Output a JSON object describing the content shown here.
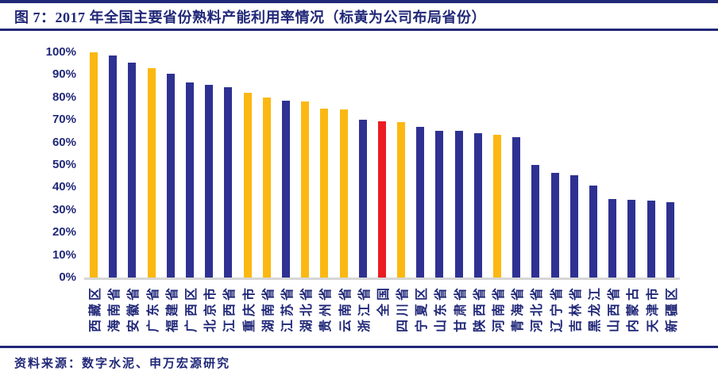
{
  "header": {
    "title": "图 7：2017 年全国主要省份熟料产能利用率情况（标黄为公司布局省份）"
  },
  "footer": {
    "source": "资料来源：数字水泥、申万宏源研究"
  },
  "palette": {
    "yellow": "#FBB812",
    "blue": "#2E3192",
    "red": "#EC1C23",
    "navy_text": "#212878",
    "axis_line": "#D6D6D6"
  },
  "chart_data": {
    "type": "bar",
    "title": "2017年全国主要省份熟料产能利用率情况",
    "note": "标黄为公司布局省份",
    "xlabel": "",
    "ylabel": "",
    "ylim": [
      0,
      100
    ],
    "grid": false,
    "legend_position": "none",
    "ytick_labels": [
      "100%",
      "90%",
      "80%",
      "70%",
      "60%",
      "50%",
      "40%",
      "30%",
      "20%",
      "10%",
      "0%"
    ],
    "categories": [
      "西藏区",
      "海南省",
      "安徽省",
      "广东省",
      "福建省",
      "广西区",
      "北京市",
      "江西省",
      "重庆市",
      "湖南省",
      "江苏省",
      "湖北省",
      "贵州省",
      "云南省",
      "浙江省",
      "全国",
      "四川省",
      "宁夏区",
      "山东省",
      "甘肃省",
      "陕西省",
      "河南省",
      "青海省",
      "河北省",
      "辽宁省",
      "吉林省",
      "黑龙江",
      "山西省",
      "内蒙古",
      "天津市",
      "新疆区"
    ],
    "values": [
      100,
      98.5,
      95.5,
      93,
      90.5,
      86.5,
      85.5,
      84.5,
      82,
      80,
      78.5,
      78,
      75,
      74.5,
      70,
      69.5,
      69,
      67,
      65,
      65,
      64,
      63.5,
      62.5,
      50,
      46.5,
      45.5,
      41,
      35,
      34.5,
      34,
      33.5
    ],
    "bar_colors": [
      "yellow",
      "blue",
      "blue",
      "yellow",
      "blue",
      "blue",
      "blue",
      "blue",
      "yellow",
      "yellow",
      "blue",
      "yellow",
      "yellow",
      "yellow",
      "blue",
      "red",
      "yellow",
      "blue",
      "blue",
      "blue",
      "blue",
      "yellow",
      "blue",
      "blue",
      "blue",
      "blue",
      "blue",
      "blue",
      "blue",
      "blue",
      "blue"
    ]
  }
}
